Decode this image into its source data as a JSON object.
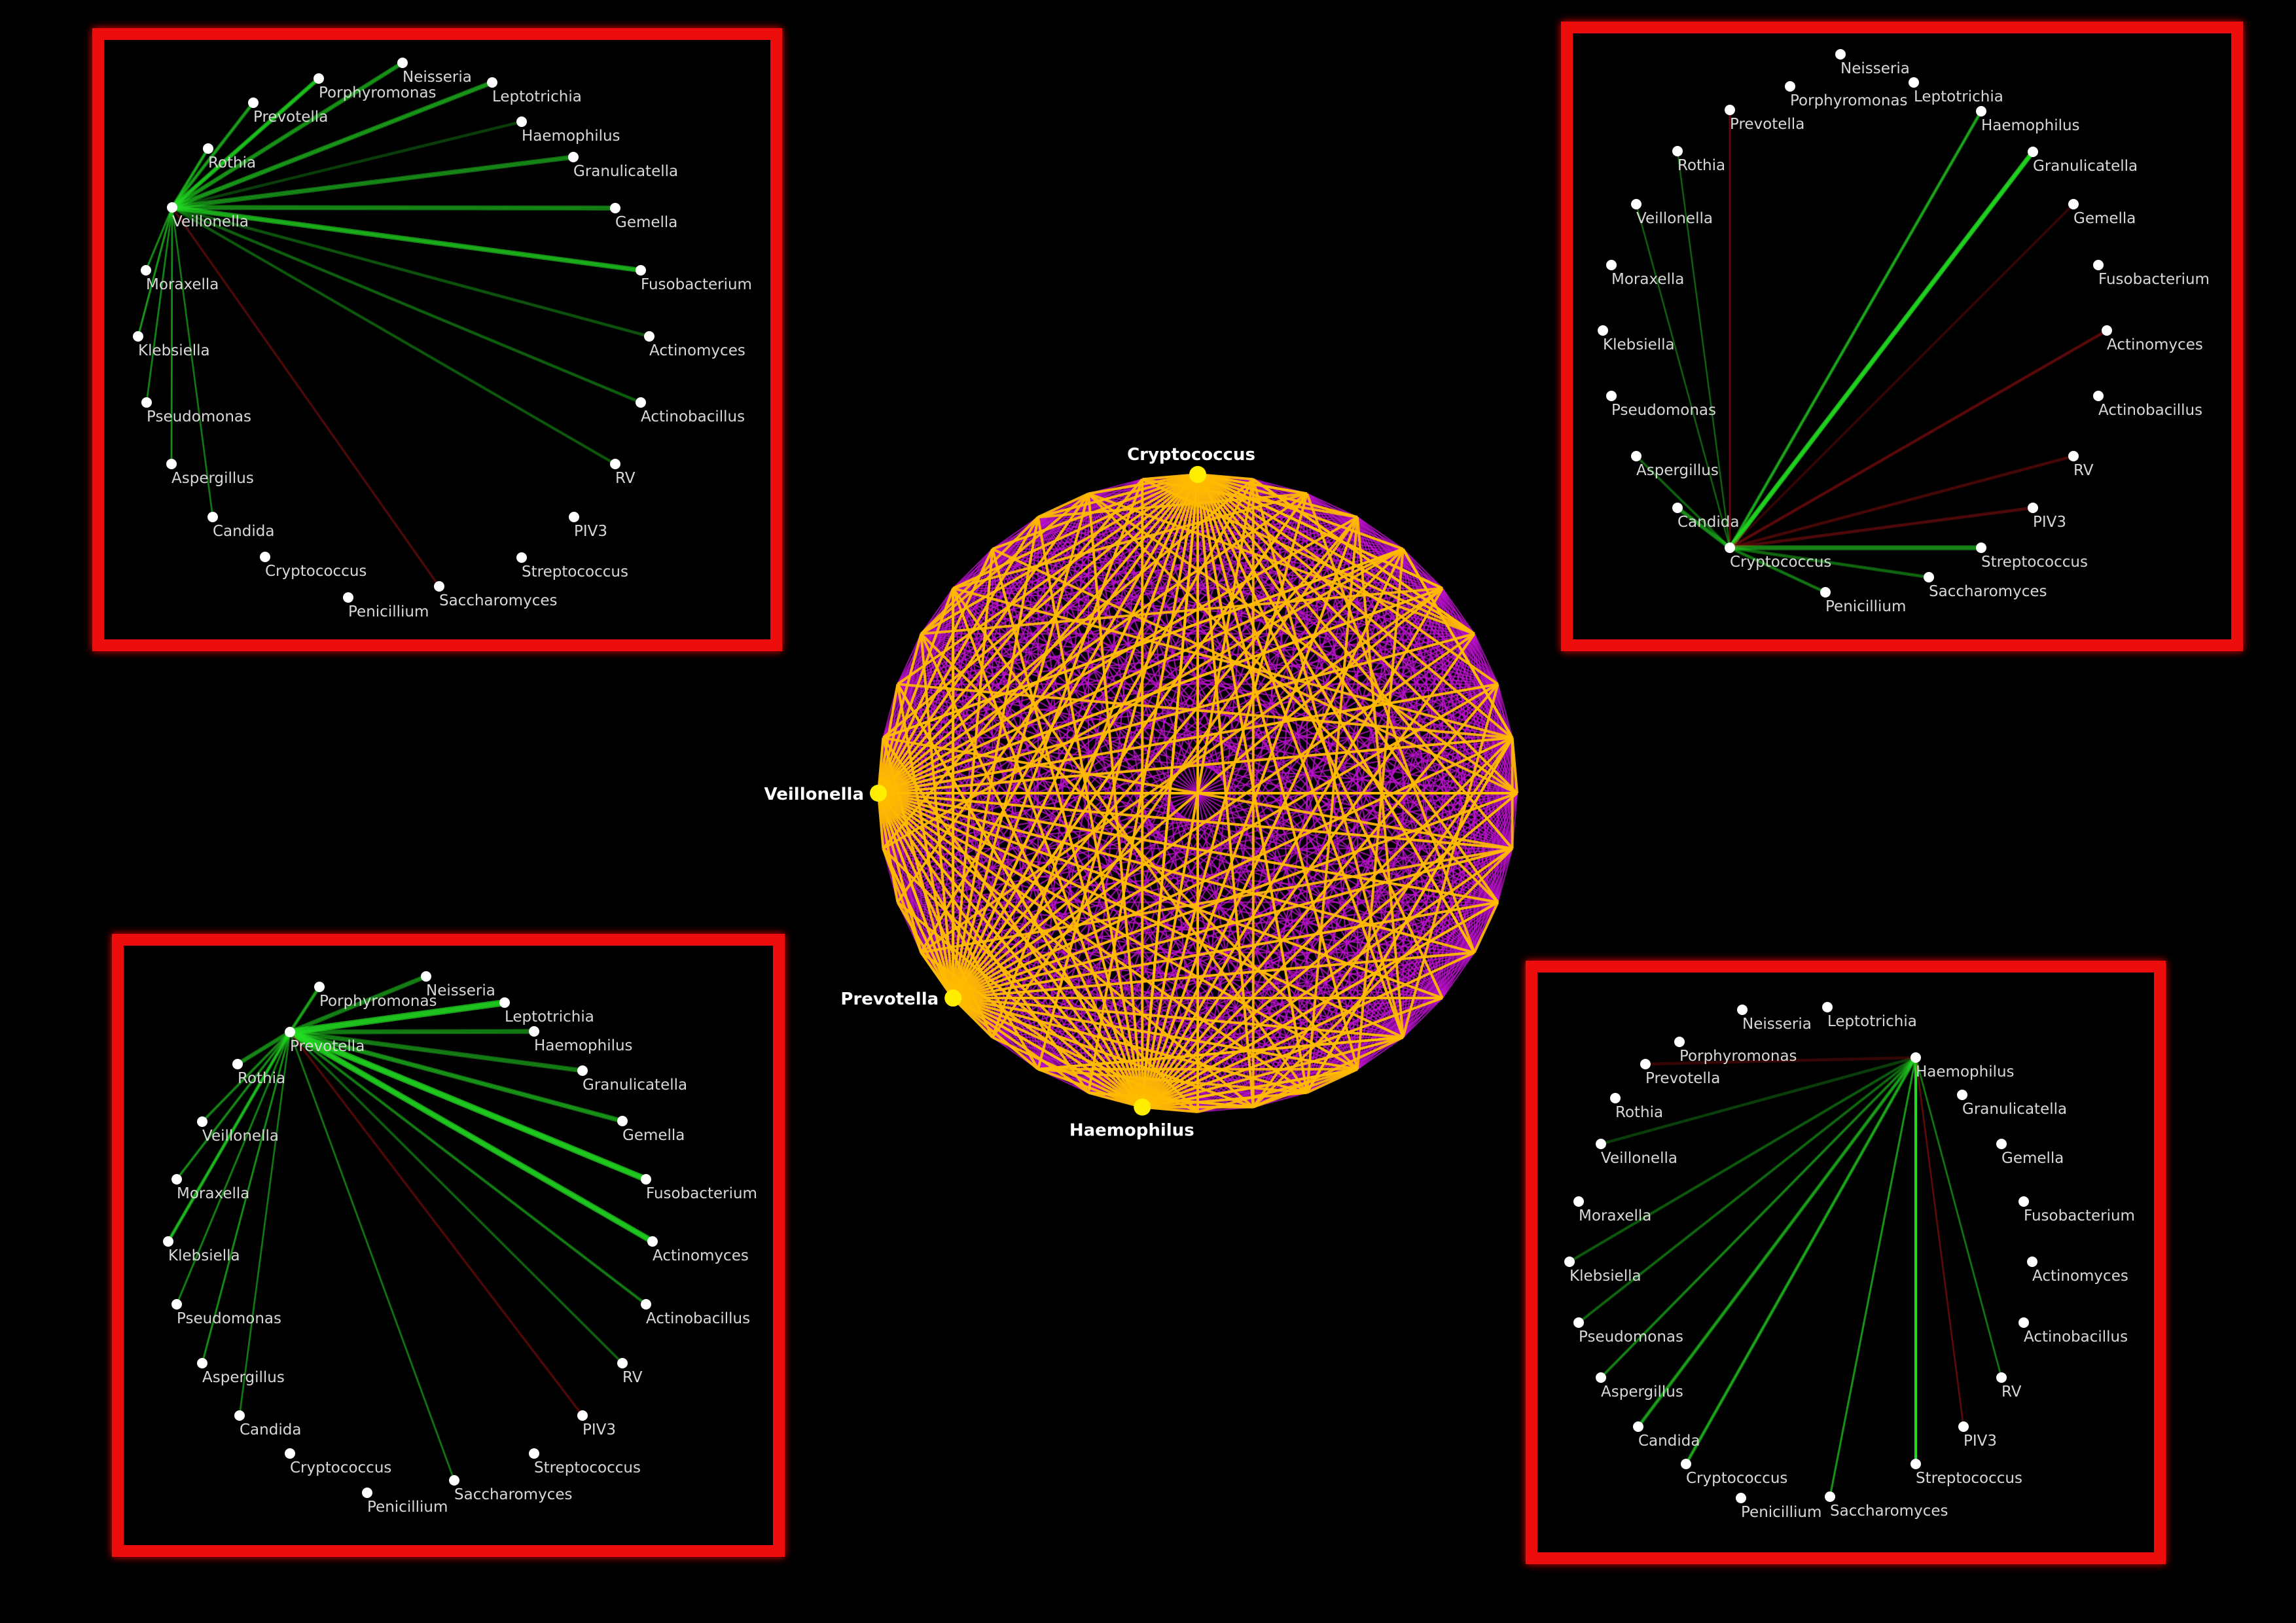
{
  "colors": {
    "background": "#000000",
    "panel_border": "#ee1111",
    "positive_edge": "#22dd22",
    "negative_edge": "#aa1111",
    "node": "#ffffff",
    "hub_node": "#ffee00",
    "network_base_edge": "#bb11cc",
    "network_highlight_edge": "#ffbb00"
  },
  "central_network": {
    "highlighted_nodes": [
      {
        "id": "cryptococcus",
        "label": "Cryptococcus"
      },
      {
        "id": "veillonella",
        "label": "Veillonella"
      },
      {
        "id": "prevotella",
        "label": "Prevotella"
      },
      {
        "id": "haemophilus",
        "label": "Haemophilus"
      }
    ]
  },
  "panels": [
    {
      "id": "veillonella",
      "hub": "Veillonella",
      "nodes": [
        {
          "label": "Neisseria"
        },
        {
          "label": "Porphyromonas"
        },
        {
          "label": "Prevotella"
        },
        {
          "label": "Leptotrichia"
        },
        {
          "label": "Rothia"
        },
        {
          "label": "Haemophilus"
        },
        {
          "label": "Granulicatella"
        },
        {
          "label": "Veillonella"
        },
        {
          "label": "Gemella"
        },
        {
          "label": "Moraxella"
        },
        {
          "label": "Fusobacterium"
        },
        {
          "label": "Klebsiella"
        },
        {
          "label": "Actinomyces"
        },
        {
          "label": "Pseudomonas"
        },
        {
          "label": "Actinobacillus"
        },
        {
          "label": "Aspergillus"
        },
        {
          "label": "RV"
        },
        {
          "label": "Candida"
        },
        {
          "label": "PIV3"
        },
        {
          "label": "Cryptococcus"
        },
        {
          "label": "Streptococcus"
        },
        {
          "label": "Penicillium"
        },
        {
          "label": "Saccharomyces"
        }
      ],
      "edges": [
        {
          "to": "Neisseria",
          "sign": "pos",
          "strength": 0.55
        },
        {
          "to": "Porphyromonas",
          "sign": "pos",
          "strength": 0.75
        },
        {
          "to": "Prevotella",
          "sign": "pos",
          "strength": 0.5
        },
        {
          "to": "Leptotrichia",
          "sign": "pos",
          "strength": 0.6
        },
        {
          "to": "Rothia",
          "sign": "pos",
          "strength": 0.5
        },
        {
          "to": "Haemophilus",
          "sign": "pos",
          "strength": 0.2
        },
        {
          "to": "Granulicatella",
          "sign": "pos",
          "strength": 0.55
        },
        {
          "to": "Gemella",
          "sign": "pos",
          "strength": 0.55
        },
        {
          "to": "Moraxella",
          "sign": "pos",
          "strength": 0.4
        },
        {
          "to": "Fusobacterium",
          "sign": "pos",
          "strength": 0.75
        },
        {
          "to": "Klebsiella",
          "sign": "pos",
          "strength": 0.45
        },
        {
          "to": "Actinomyces",
          "sign": "pos",
          "strength": 0.3
        },
        {
          "to": "Pseudomonas",
          "sign": "pos",
          "strength": 0.35
        },
        {
          "to": "Actinobacillus",
          "sign": "pos",
          "strength": 0.35
        },
        {
          "to": "Aspergillus",
          "sign": "pos",
          "strength": 0.4
        },
        {
          "to": "RV",
          "sign": "pos",
          "strength": 0.3
        },
        {
          "to": "Candida",
          "sign": "pos",
          "strength": 0.3
        },
        {
          "to": "Saccharomyces",
          "sign": "neg",
          "strength": 0.3
        }
      ]
    },
    {
      "id": "cryptococcus",
      "hub": "Cryptococcus",
      "nodes": [
        {
          "label": "Neisseria"
        },
        {
          "label": "Porphyromonas"
        },
        {
          "label": "Leptotrichia"
        },
        {
          "label": "Prevotella"
        },
        {
          "label": "Haemophilus"
        },
        {
          "label": "Rothia"
        },
        {
          "label": "Granulicatella"
        },
        {
          "label": "Veillonella"
        },
        {
          "label": "Gemella"
        },
        {
          "label": "Moraxella"
        },
        {
          "label": "Fusobacterium"
        },
        {
          "label": "Klebsiella"
        },
        {
          "label": "Actinomyces"
        },
        {
          "label": "Pseudomonas"
        },
        {
          "label": "Actinobacillus"
        },
        {
          "label": "Aspergillus"
        },
        {
          "label": "RV"
        },
        {
          "label": "Candida"
        },
        {
          "label": "PIV3"
        },
        {
          "label": "Cryptococcus"
        },
        {
          "label": "Streptococcus"
        },
        {
          "label": "Saccharomyces"
        },
        {
          "label": "Penicillium"
        }
      ],
      "edges": [
        {
          "to": "Haemophilus",
          "sign": "pos",
          "strength": 0.5
        },
        {
          "to": "Granulicatella",
          "sign": "pos",
          "strength": 0.85
        },
        {
          "to": "Prevotella",
          "sign": "neg",
          "strength": 0.35
        },
        {
          "to": "Gemella",
          "sign": "neg",
          "strength": 0.2
        },
        {
          "to": "Actinomyces",
          "sign": "neg",
          "strength": 0.45
        },
        {
          "to": "RV",
          "sign": "neg",
          "strength": 0.35
        },
        {
          "to": "PIV3",
          "sign": "neg",
          "strength": 0.4
        },
        {
          "to": "Streptococcus",
          "sign": "pos",
          "strength": 0.55
        },
        {
          "to": "Saccharomyces",
          "sign": "pos",
          "strength": 0.4
        },
        {
          "to": "Penicillium",
          "sign": "pos",
          "strength": 0.45
        },
        {
          "to": "Candida",
          "sign": "pos",
          "strength": 0.5
        },
        {
          "to": "Aspergillus",
          "sign": "pos",
          "strength": 0.3
        },
        {
          "to": "Veillonella",
          "sign": "pos",
          "strength": 0.2
        },
        {
          "to": "Rothia",
          "sign": "pos",
          "strength": 0.2
        }
      ]
    },
    {
      "id": "prevotella",
      "hub": "Prevotella",
      "nodes": [
        {
          "label": "Porphyromonas"
        },
        {
          "label": "Neisseria"
        },
        {
          "label": "Leptotrichia"
        },
        {
          "label": "Prevotella"
        },
        {
          "label": "Haemophilus"
        },
        {
          "label": "Rothia"
        },
        {
          "label": "Granulicatella"
        },
        {
          "label": "Veillonella"
        },
        {
          "label": "Gemella"
        },
        {
          "label": "Moraxella"
        },
        {
          "label": "Fusobacterium"
        },
        {
          "label": "Klebsiella"
        },
        {
          "label": "Actinomyces"
        },
        {
          "label": "Pseudomonas"
        },
        {
          "label": "Actinobacillus"
        },
        {
          "label": "Aspergillus"
        },
        {
          "label": "RV"
        },
        {
          "label": "Candida"
        },
        {
          "label": "PIV3"
        },
        {
          "label": "Cryptococcus"
        },
        {
          "label": "Streptococcus"
        },
        {
          "label": "Penicillium"
        },
        {
          "label": "Saccharomyces"
        }
      ],
      "edges": [
        {
          "to": "Porphyromonas",
          "sign": "pos",
          "strength": 0.5
        },
        {
          "to": "Neisseria",
          "sign": "pos",
          "strength": 0.5
        },
        {
          "to": "Leptotrichia",
          "sign": "pos",
          "strength": 0.9
        },
        {
          "to": "Haemophilus",
          "sign": "pos",
          "strength": 0.5
        },
        {
          "to": "Granulicatella",
          "sign": "pos",
          "strength": 0.5
        },
        {
          "to": "Gemella",
          "sign": "pos",
          "strength": 0.6
        },
        {
          "to": "Fusobacterium",
          "sign": "pos",
          "strength": 0.9
        },
        {
          "to": "Actinomyces",
          "sign": "pos",
          "strength": 0.85
        },
        {
          "to": "Actinobacillus",
          "sign": "pos",
          "strength": 0.45
        },
        {
          "to": "RV",
          "sign": "pos",
          "strength": 0.3
        },
        {
          "to": "PIV3",
          "sign": "neg",
          "strength": 0.3
        },
        {
          "to": "Rothia",
          "sign": "pos",
          "strength": 0.5
        },
        {
          "to": "Veillonella",
          "sign": "pos",
          "strength": 0.45
        },
        {
          "to": "Moraxella",
          "sign": "pos",
          "strength": 0.45
        },
        {
          "to": "Klebsiella",
          "sign": "pos",
          "strength": 0.6
        },
        {
          "to": "Pseudomonas",
          "sign": "pos",
          "strength": 0.35
        },
        {
          "to": "Aspergillus",
          "sign": "pos",
          "strength": 0.4
        },
        {
          "to": "Candida",
          "sign": "pos",
          "strength": 0.3
        },
        {
          "to": "Saccharomyces",
          "sign": "pos",
          "strength": 0.3
        }
      ]
    },
    {
      "id": "haemophilus",
      "hub": "Haemophilus",
      "nodes": [
        {
          "label": "Neisseria"
        },
        {
          "label": "Leptotrichia"
        },
        {
          "label": "Porphyromonas"
        },
        {
          "label": "Prevotella"
        },
        {
          "label": "Haemophilus"
        },
        {
          "label": "Rothia"
        },
        {
          "label": "Granulicatella"
        },
        {
          "label": "Veillonella"
        },
        {
          "label": "Gemella"
        },
        {
          "label": "Moraxella"
        },
        {
          "label": "Fusobacterium"
        },
        {
          "label": "Klebsiella"
        },
        {
          "label": "Actinomyces"
        },
        {
          "label": "Pseudomonas"
        },
        {
          "label": "Actinobacillus"
        },
        {
          "label": "Aspergillus"
        },
        {
          "label": "RV"
        },
        {
          "label": "Candida"
        },
        {
          "label": "PIV3"
        },
        {
          "label": "Cryptococcus"
        },
        {
          "label": "Streptococcus"
        },
        {
          "label": "Penicillium"
        },
        {
          "label": "Saccharomyces"
        }
      ],
      "edges": [
        {
          "to": "Veillonella",
          "sign": "pos",
          "strength": 0.2
        },
        {
          "to": "Prevotella",
          "sign": "neg",
          "strength": 0.25
        },
        {
          "to": "Klebsiella",
          "sign": "pos",
          "strength": 0.3
        },
        {
          "to": "Pseudomonas",
          "sign": "pos",
          "strength": 0.35
        },
        {
          "to": "Aspergillus",
          "sign": "pos",
          "strength": 0.45
        },
        {
          "to": "Candida",
          "sign": "pos",
          "strength": 0.5
        },
        {
          "to": "Cryptococcus",
          "sign": "pos",
          "strength": 0.5
        },
        {
          "to": "Saccharomyces",
          "sign": "pos",
          "strength": 0.45
        },
        {
          "to": "Streptococcus",
          "sign": "pos",
          "strength": 0.9
        },
        {
          "to": "PIV3",
          "sign": "neg",
          "strength": 0.3
        },
        {
          "to": "RV",
          "sign": "pos",
          "strength": 0.3
        }
      ]
    }
  ]
}
